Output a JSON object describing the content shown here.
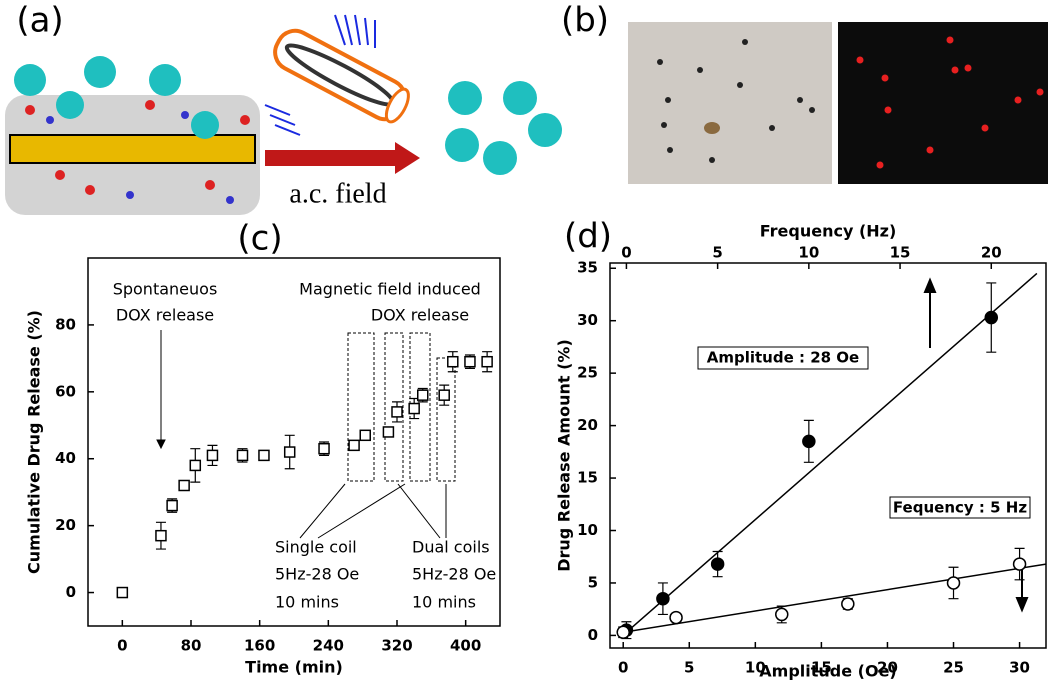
{
  "panel_labels": [
    "(a)",
    "(b)",
    "(c)",
    "(d)"
  ],
  "panel_a": {
    "caption": "a.c. field"
  },
  "chart_data": [
    {
      "type": "scatter",
      "xlabel": "Time (min)",
      "ylabel": "Cumulative Drug Release (%)",
      "xlim": [
        -40,
        440
      ],
      "xticks": [
        0,
        80,
        160,
        240,
        320,
        400
      ],
      "ylim": [
        -10,
        100
      ],
      "yticks": [
        0,
        20,
        40,
        60,
        80
      ],
      "annotations": [
        "Spontaneuos",
        "DOX release",
        "Magnetic field induced",
        "DOX release",
        "Single coil",
        "5Hz-28 Oe",
        "10 mins",
        "Dual coils",
        "5Hz-28 Oe",
        "10 mins"
      ],
      "series": [
        {
          "color": "#000000",
          "marker": "square",
          "filled": false,
          "x": [
            0,
            45,
            58,
            72,
            85,
            105,
            140,
            165,
            195,
            235,
            270,
            283,
            310,
            320,
            340,
            350,
            375,
            385,
            405,
            425
          ],
          "values": [
            0,
            17,
            26,
            32,
            38,
            41,
            41,
            41,
            42,
            43,
            44,
            47,
            48,
            54,
            55,
            59,
            59,
            69,
            69,
            69
          ],
          "errors": [
            0,
            4,
            2,
            1,
            5,
            3,
            2,
            1,
            5,
            2,
            1,
            1,
            1,
            3,
            3,
            2,
            3,
            3,
            2,
            3
          ]
        }
      ]
    },
    {
      "type": "scatter",
      "xlabel": "Amplitude (Oe)",
      "x2label": "Frequency (Hz)",
      "ylabel": "Drug Release Amount (%)",
      "xlim": [
        -1,
        32
      ],
      "xticks": [
        0,
        5,
        10,
        15,
        20,
        25,
        30
      ],
      "x2lim": [
        -0.9,
        23
      ],
      "x2ticks": [
        0,
        5,
        10,
        15,
        20
      ],
      "ylim": [
        -1.2,
        35.5
      ],
      "yticks": [
        0,
        5,
        10,
        15,
        20,
        25,
        30,
        35
      ],
      "annotations": [
        "Amplitude : 28 Oe",
        "Fequency : 5 Hz"
      ],
      "series": [
        {
          "color": "#000000",
          "marker": "circle",
          "filled": true,
          "axis": "x2",
          "x": [
            0,
            2,
            5,
            10,
            20
          ],
          "values": [
            0.5,
            3.5,
            6.8,
            18.5,
            30.3
          ],
          "errors": [
            0.8,
            1.5,
            1.2,
            2,
            3.3
          ],
          "fit": {
            "x": [
              0,
              22.5
            ],
            "values": [
              0.3,
              34.5
            ]
          }
        },
        {
          "color": "#000000",
          "marker": "circle",
          "filled": false,
          "x": [
            0,
            4,
            12,
            17,
            25,
            30
          ],
          "values": [
            0.3,
            1.7,
            2,
            3,
            5,
            6.8
          ],
          "errors": [
            0.5,
            0.3,
            0.8,
            0.5,
            1.5,
            1.5
          ],
          "fit": {
            "x": [
              0,
              32
            ],
            "values": [
              0.3,
              6.8
            ]
          }
        }
      ]
    }
  ]
}
